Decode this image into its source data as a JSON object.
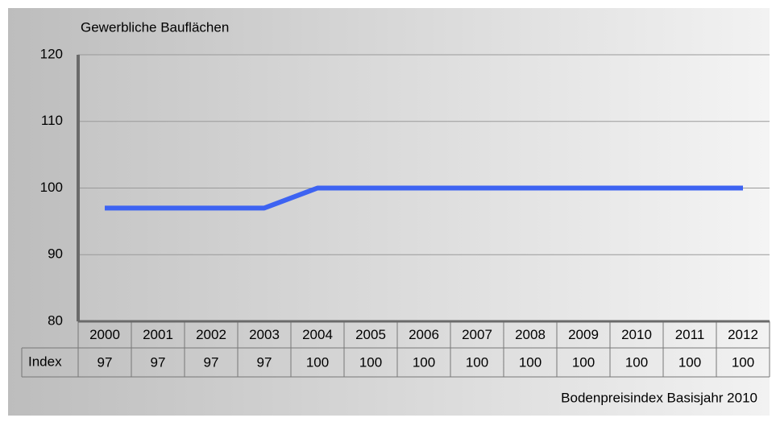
{
  "chart_data": {
    "type": "line",
    "title": "Gewerbliche Bauflächen",
    "caption": "Bodenpreisindex Basisjahr 2010",
    "categories": [
      "2000",
      "2001",
      "2002",
      "2003",
      "2004",
      "2005",
      "2006",
      "2007",
      "2008",
      "2009",
      "2010",
      "2011",
      "2012"
    ],
    "series": [
      {
        "name": "Index",
        "color": "#3d63f2",
        "values": [
          97,
          97,
          97,
          97,
          100,
          100,
          100,
          100,
          100,
          100,
          100,
          100,
          100
        ]
      }
    ],
    "ylim": [
      80,
      120
    ],
    "yticks": [
      80,
      90,
      100,
      110,
      120
    ],
    "grid": true
  }
}
